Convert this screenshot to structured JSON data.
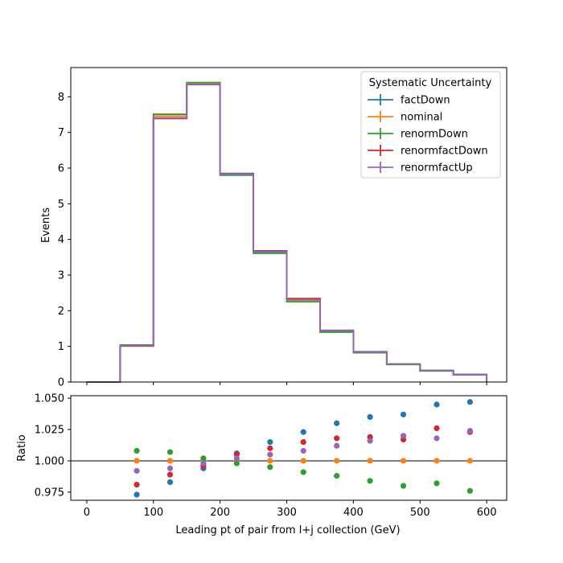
{
  "chart_data": [
    {
      "type": "step",
      "xlim": [
        -24,
        630
      ],
      "ylim": [
        0,
        8.82
      ],
      "ylabel": "Events",
      "yticks": [
        0,
        1,
        2,
        3,
        4,
        5,
        6,
        7,
        8
      ],
      "ytick_labels": [
        "0",
        "1",
        "2",
        "3",
        "4",
        "5",
        "6",
        "7",
        "8"
      ],
      "bin_edges": [
        0,
        50,
        100,
        150,
        200,
        250,
        300,
        350,
        400,
        450,
        500,
        550,
        600
      ],
      "legend": {
        "title": "Systematic Uncertainty",
        "placement": "upper-right"
      },
      "series": [
        {
          "name": "factDown",
          "color": "#1f77b4",
          "values": [
            0,
            1.01,
            7.4,
            8.35,
            5.85,
            3.68,
            2.34,
            1.45,
            0.85,
            0.51,
            0.33,
            0.21
          ]
        },
        {
          "name": "nominal",
          "color": "#ff7f0e",
          "values": [
            0,
            1.03,
            7.46,
            8.38,
            5.82,
            3.63,
            2.29,
            1.42,
            0.83,
            0.5,
            0.32,
            0.2
          ]
        },
        {
          "name": "renormDown",
          "color": "#2ca02c",
          "values": [
            0,
            1.04,
            7.51,
            8.4,
            5.8,
            3.61,
            2.25,
            1.4,
            0.82,
            0.49,
            0.31,
            0.2
          ]
        },
        {
          "name": "renormfactDown",
          "color": "#d62728",
          "values": [
            0,
            1.01,
            7.39,
            8.34,
            5.84,
            3.67,
            2.34,
            1.45,
            0.84,
            0.51,
            0.33,
            0.21
          ]
        },
        {
          "name": "renormfactUp",
          "color": "#9467bd",
          "values": [
            0,
            1.02,
            7.41,
            8.35,
            5.83,
            3.65,
            2.31,
            1.44,
            0.84,
            0.51,
            0.33,
            0.21
          ]
        }
      ]
    },
    {
      "type": "scatter",
      "xlim": [
        -24,
        630
      ],
      "ylim": [
        0.9685,
        1.052
      ],
      "xlabel": "Leading pt of pair from l+j collection (GeV)",
      "ylabel": "Ratio",
      "xticks": [
        0,
        100,
        200,
        300,
        400,
        500,
        600
      ],
      "xtick_labels": [
        "0",
        "100",
        "200",
        "300",
        "400",
        "500",
        "600"
      ],
      "yticks": [
        0.975,
        1.0,
        1.025,
        1.05
      ],
      "ytick_labels": [
        "0.975",
        "1.000",
        "1.025",
        "1.050"
      ],
      "reference_line": 1.0,
      "x": [
        75,
        125,
        175,
        225,
        275,
        325,
        375,
        425,
        475,
        525,
        575
      ],
      "series": [
        {
          "name": "factDown",
          "color": "#1f77b4",
          "values": [
            0.973,
            0.983,
            0.994,
            1.006,
            1.015,
            1.023,
            1.03,
            1.035,
            1.037,
            1.045,
            1.047
          ]
        },
        {
          "name": "nominal",
          "color": "#ff7f0e",
          "values": [
            1.0,
            1.0,
            1.0,
            1.0,
            1.0,
            1.0,
            1.0,
            1.0,
            1.0,
            1.0,
            1.0
          ]
        },
        {
          "name": "renormDown",
          "color": "#2ca02c",
          "values": [
            1.008,
            1.007,
            1.002,
            0.998,
            0.995,
            0.991,
            0.988,
            0.984,
            0.98,
            0.982,
            0.976
          ]
        },
        {
          "name": "renormfactDown",
          "color": "#d62728",
          "values": [
            0.981,
            0.989,
            0.996,
            1.005,
            1.01,
            1.015,
            1.018,
            1.019,
            1.017,
            1.026,
            1.023
          ]
        },
        {
          "name": "renormfactUp",
          "color": "#9467bd",
          "values": [
            0.992,
            0.994,
            0.998,
            1.002,
            1.005,
            1.008,
            1.012,
            1.016,
            1.02,
            1.018,
            1.024
          ]
        }
      ]
    }
  ]
}
